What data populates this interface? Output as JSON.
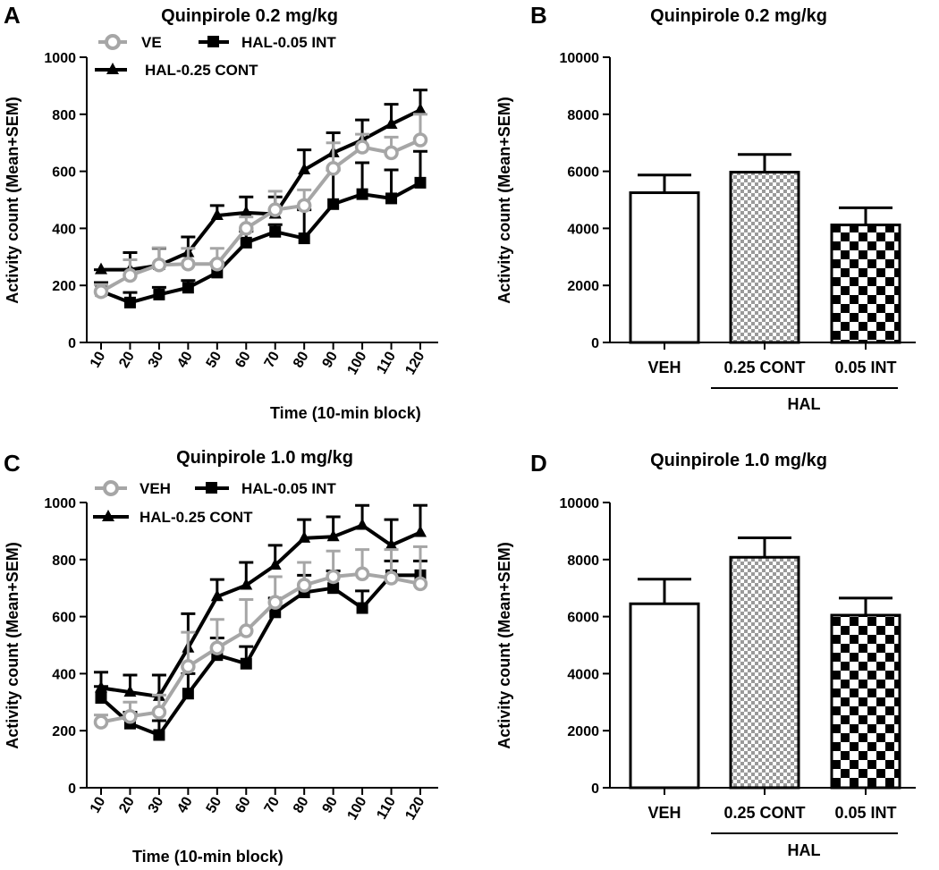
{
  "colors": {
    "black": "#000000",
    "gray": "#a6a6a6",
    "white": "#ffffff"
  },
  "chart_data": [
    {
      "panel": "A",
      "type": "line",
      "title": "Quinpirole 0.2 mg/kg",
      "xlabel": "Time (10-min block)",
      "ylabel": "Activity count (Mean+SEM)",
      "ylim": [
        0,
        1000
      ],
      "yticks": [
        0,
        200,
        400,
        600,
        800,
        1000
      ],
      "categories": [
        "10",
        "20",
        "30",
        "40",
        "50",
        "60",
        "70",
        "80",
        "90",
        "100",
        "110",
        "120"
      ],
      "legend": [
        "VE",
        "HAL-0.05 INT",
        "HAL-0.25 CONT"
      ],
      "series": [
        {
          "name": "VE",
          "color": "#a6a6a6",
          "marker": "circle",
          "values": [
            178,
            235,
            272,
            275,
            275,
            400,
            465,
            480,
            610,
            685,
            665,
            710
          ],
          "sem": [
            25,
            55,
            60,
            55,
            55,
            40,
            65,
            55,
            90,
            45,
            55,
            90
          ]
        },
        {
          "name": "HAL-0.05 INT",
          "color": "#000000",
          "marker": "square",
          "values": [
            180,
            140,
            168,
            192,
            245,
            350,
            388,
            365,
            485,
            520,
            505,
            560
          ],
          "sem": [
            30,
            35,
            25,
            25,
            35,
            40,
            25,
            100,
            120,
            110,
            100,
            110
          ]
        },
        {
          "name": "HAL-0.25 CONT",
          "color": "#000000",
          "marker": "triangle",
          "values": [
            255,
            255,
            270,
            315,
            445,
            455,
            450,
            605,
            665,
            710,
            765,
            815
          ],
          "sem": [
            0,
            60,
            60,
            55,
            35,
            55,
            60,
            70,
            70,
            70,
            70,
            70
          ]
        }
      ]
    },
    {
      "panel": "B",
      "type": "bar",
      "title": "Quinpirole 0.2 mg/kg",
      "ylabel": "Activity count (Mean+SEM)",
      "ylim": [
        0,
        10000
      ],
      "yticks": [
        0,
        2000,
        4000,
        6000,
        8000,
        10000
      ],
      "categories": [
        "VEH",
        "0.25 CONT",
        "0.05 INT"
      ],
      "values": [
        5250,
        5970,
        4120
      ],
      "sem": [
        620,
        620,
        600
      ],
      "fills": [
        "white",
        "fine-check",
        "coarse-check"
      ],
      "group_label": "HAL"
    },
    {
      "panel": "C",
      "type": "line",
      "title": "Quinpirole 1.0 mg/kg",
      "xlabel": "Time (10-min block)",
      "ylabel": "Activity count (Mean+SEM)",
      "ylim": [
        0,
        1000
      ],
      "yticks": [
        0,
        200,
        400,
        600,
        800,
        1000
      ],
      "categories": [
        "10",
        "20",
        "30",
        "40",
        "50",
        "60",
        "70",
        "80",
        "90",
        "100",
        "110",
        "120"
      ],
      "legend": [
        "VEH",
        "HAL-0.05 INT",
        "HAL-0.25 CONT"
      ],
      "series": [
        {
          "name": "VEH",
          "color": "#a6a6a6",
          "marker": "circle",
          "values": [
            230,
            250,
            265,
            425,
            490,
            550,
            650,
            710,
            740,
            750,
            735,
            715
          ],
          "sem": [
            25,
            50,
            60,
            120,
            100,
            110,
            90,
            80,
            90,
            85,
            100,
            130
          ]
        },
        {
          "name": "HAL-0.05 INT",
          "color": "#000000",
          "marker": "square",
          "values": [
            315,
            225,
            185,
            330,
            465,
            435,
            615,
            685,
            700,
            630,
            745,
            745
          ],
          "sem": [
            40,
            40,
            50,
            70,
            60,
            60,
            50,
            60,
            60,
            60,
            50,
            50
          ]
        },
        {
          "name": "HAL-0.25 CONT",
          "color": "#000000",
          "marker": "triangle",
          "values": [
            350,
            335,
            320,
            490,
            670,
            710,
            780,
            875,
            880,
            920,
            850,
            895
          ],
          "sem": [
            55,
            60,
            75,
            120,
            60,
            80,
            70,
            65,
            70,
            70,
            90,
            95
          ]
        }
      ]
    },
    {
      "panel": "D",
      "type": "bar",
      "title": "Quinpirole 1.0 mg/kg",
      "ylabel": "Activity count (Mean+SEM)",
      "ylim": [
        0,
        10000
      ],
      "yticks": [
        0,
        2000,
        4000,
        6000,
        8000,
        10000
      ],
      "categories": [
        "VEH",
        "0.25 CONT",
        "0.05 INT"
      ],
      "values": [
        6450,
        8080,
        6050
      ],
      "sem": [
        860,
        680,
        600
      ],
      "fills": [
        "white",
        "fine-check",
        "coarse-check"
      ],
      "group_label": "HAL"
    }
  ]
}
